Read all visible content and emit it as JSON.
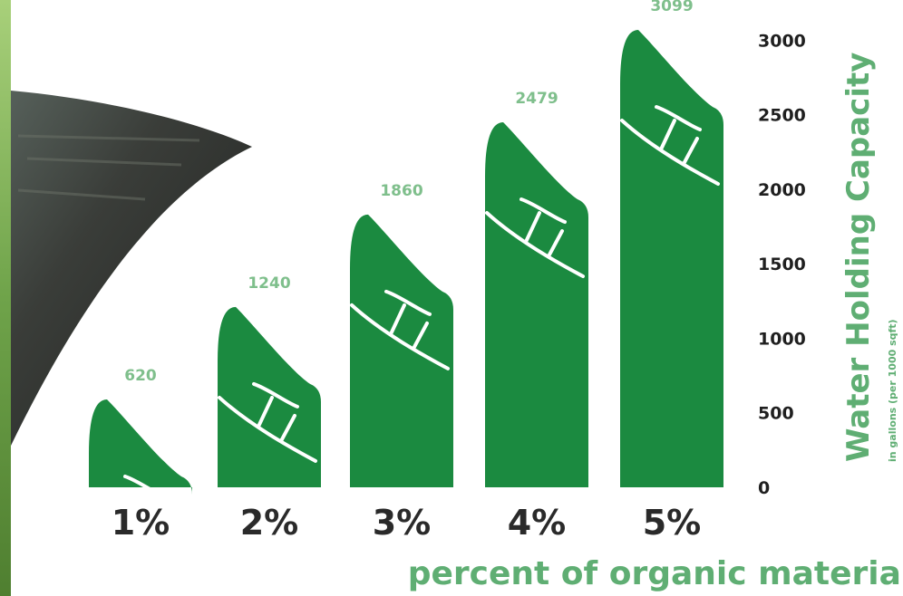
{
  "colors": {
    "bar": "#1b8a40",
    "value_label": "#7fbf8c",
    "axis_title": "#5fae73",
    "tick": "#1f1f1f",
    "category": "#2a2a2a",
    "background_dark": "#2d2f2c",
    "grass": "#6fa34a"
  },
  "chart_data": {
    "type": "bar",
    "categories": [
      "1%",
      "2%",
      "3%",
      "4%",
      "5%"
    ],
    "values": [
      620,
      1240,
      1860,
      2479,
      3099
    ],
    "value_labels": [
      "620",
      "1240",
      "1860",
      "2479",
      "3099"
    ],
    "xlabel": "percent of organic material",
    "ylabel": "Water Holding Capacity",
    "ylabel_sub": "in gallons (per 1000 sqft)",
    "yticks": [
      "0",
      "500",
      "1000",
      "1500",
      "2000",
      "2500",
      "3000"
    ],
    "ylim": [
      0,
      3000
    ],
    "bar_shape": "leaf",
    "grid": false
  }
}
